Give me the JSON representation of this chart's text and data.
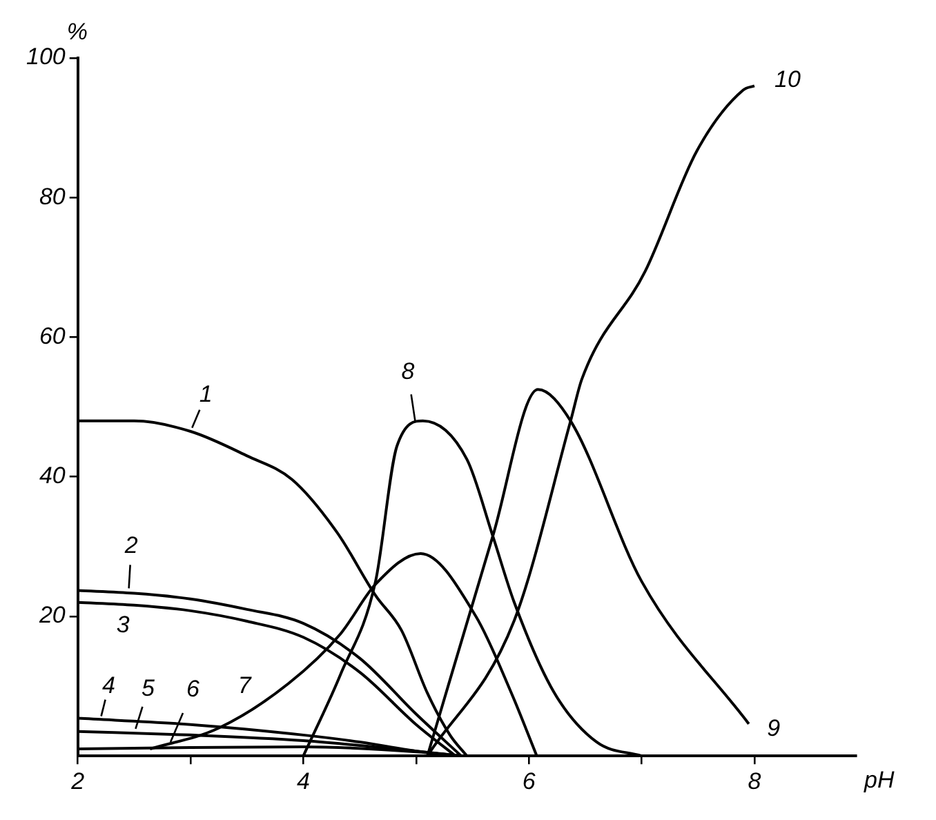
{
  "chart_data": {
    "type": "line",
    "xlabel": "pH",
    "ylabel": "%",
    "xlim": [
      2,
      8.9
    ],
    "ylim": [
      0,
      100
    ],
    "xticks": [
      2,
      {
        "value": 3,
        "label": null
      },
      4,
      {
        "value": 5,
        "label": null
      },
      6,
      {
        "value": 7,
        "label": null
      },
      8
    ],
    "yticks": [
      20,
      40,
      60,
      80,
      100
    ],
    "grid": false,
    "legend": false,
    "marker": "none",
    "line_style": "solid",
    "series": [
      {
        "name": "1",
        "color": "#000000",
        "x": [
          2,
          2.5,
          3,
          3.5,
          3.9,
          4.3,
          4.64,
          4.87,
          5.1,
          5.3,
          5.45
        ],
        "values": [
          48,
          48,
          46.5,
          43,
          39.6,
          32,
          23,
          18,
          9,
          3,
          0
        ]
      },
      {
        "name": "2",
        "color": "#000000",
        "x": [
          2,
          2.5,
          3,
          3.5,
          4,
          4.5,
          5,
          5.4
        ],
        "values": [
          23.7,
          23.3,
          22.5,
          21,
          19,
          14,
          6,
          0
        ]
      },
      {
        "name": "3",
        "color": "#000000",
        "x": [
          2,
          2.5,
          3,
          3.5,
          4,
          4.5,
          5,
          5.35
        ],
        "values": [
          22,
          21.6,
          20.8,
          19.3,
          17,
          12,
          4.5,
          0
        ]
      },
      {
        "name": "4",
        "color": "#000000",
        "x": [
          2,
          3,
          4,
          4.5,
          5,
          5.4
        ],
        "values": [
          5.4,
          4.5,
          3,
          2,
          0.7,
          0
        ]
      },
      {
        "name": "5",
        "color": "#000000",
        "x": [
          2,
          3,
          4,
          5,
          5.4
        ],
        "values": [
          3.5,
          3,
          2.2,
          0.7,
          0
        ]
      },
      {
        "name": "6",
        "color": "#000000",
        "x": [
          2,
          3,
          4,
          5,
          5.4
        ],
        "values": [
          1,
          1.2,
          1.3,
          0.6,
          0
        ]
      },
      {
        "name": "7",
        "color": "#000000",
        "x": [
          2.64,
          3.25,
          3.87,
          4.33,
          4.64,
          5.04,
          5.53,
          5.84,
          6.07
        ],
        "values": [
          1,
          4,
          10.4,
          17.5,
          24.6,
          29,
          20,
          9.2,
          0
        ]
      },
      {
        "name": "8",
        "color": "#000000",
        "x": [
          4,
          4.33,
          4.64,
          4.83,
          5.06,
          5.45,
          5.68,
          5.87,
          6.22,
          6.6,
          7
        ],
        "values": [
          0,
          11.7,
          25,
          44.4,
          48,
          42.5,
          31.5,
          22,
          9.2,
          2,
          0
        ]
      },
      {
        "name": "9",
        "color": "#000000",
        "x": [
          5.1,
          5.68,
          6.08,
          6.37,
          7,
          7.95
        ],
        "values": [
          0,
          31.5,
          52.5,
          48,
          25,
          4.6
        ]
      },
      {
        "name": "10",
        "color": "#000000",
        "x": [
          5.1,
          5.87,
          6.37,
          6.47,
          7.03,
          7.49,
          7.9,
          8
        ],
        "values": [
          0,
          19.4,
          48,
          54,
          69.4,
          86.7,
          95.4,
          96
        ]
      }
    ]
  }
}
